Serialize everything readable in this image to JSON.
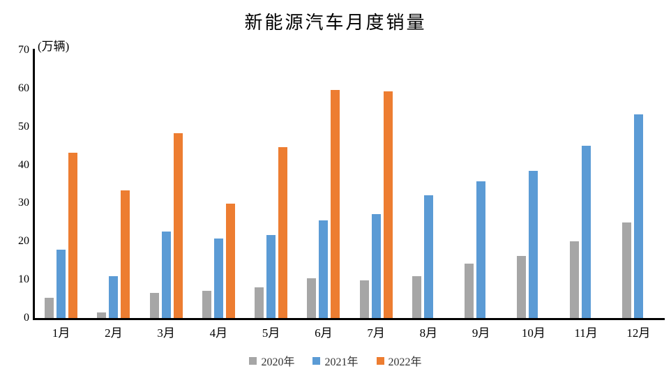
{
  "chart_data": {
    "type": "bar",
    "title": "新能源汽车月度销量",
    "unit_label": "(万辆)",
    "categories": [
      "1月",
      "2月",
      "3月",
      "4月",
      "5月",
      "6月",
      "7月",
      "8月",
      "9月",
      "10月",
      "11月",
      "12月"
    ],
    "series": [
      {
        "name": "2020年",
        "color": "#A6A6A6",
        "values": [
          5.3,
          1.5,
          6.5,
          7.2,
          8.1,
          10.4,
          9.8,
          11.0,
          14.2,
          16.2,
          20.0,
          24.9
        ]
      },
      {
        "name": "2021年",
        "color": "#5B9BD5",
        "values": [
          17.9,
          11.0,
          22.6,
          20.7,
          21.7,
          25.6,
          27.1,
          32.1,
          35.7,
          38.4,
          45.1,
          53.2
        ]
      },
      {
        "name": "2022年",
        "color": "#ED7D31",
        "values": [
          43.2,
          33.4,
          48.4,
          29.9,
          44.7,
          59.6,
          59.3,
          null,
          null,
          null,
          null,
          null
        ]
      }
    ],
    "y_ticks": [
      0,
      10,
      20,
      30,
      40,
      50,
      60,
      70
    ],
    "ylim": [
      0,
      70
    ],
    "grid": false,
    "legend_position": "bottom",
    "axis_color": "#000000"
  }
}
